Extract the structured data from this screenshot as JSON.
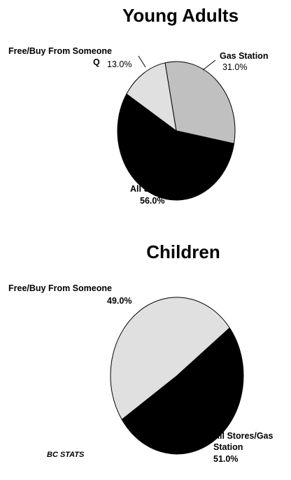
{
  "chart_data": [
    {
      "type": "pie",
      "title": "Young Adults",
      "slices": [
        {
          "label": "Gas Station",
          "value": 31.0,
          "display": "31.0%",
          "color": "#c0c0c0"
        },
        {
          "label": "All Stores",
          "value": 56.0,
          "display": "56.0%",
          "color": "#000000"
        },
        {
          "label": "Free/Buy From Someone",
          "value": 13.0,
          "display": "13.0%",
          "color": "#e0e0e0"
        }
      ],
      "stray_glyph": "Q"
    },
    {
      "type": "pie",
      "title": "Children",
      "slices": [
        {
          "label": "Free/Buy From Someone",
          "value": 49.0,
          "display": "49.0%",
          "color": "#e0e0e0"
        },
        {
          "label": "All Stores/Gas Station",
          "label_lines": [
            "All Stores/Gas",
            "Station"
          ],
          "value": 51.0,
          "display": "51.0%",
          "color": "#000000"
        }
      ]
    }
  ],
  "footer": {
    "source": "BC STATS"
  }
}
